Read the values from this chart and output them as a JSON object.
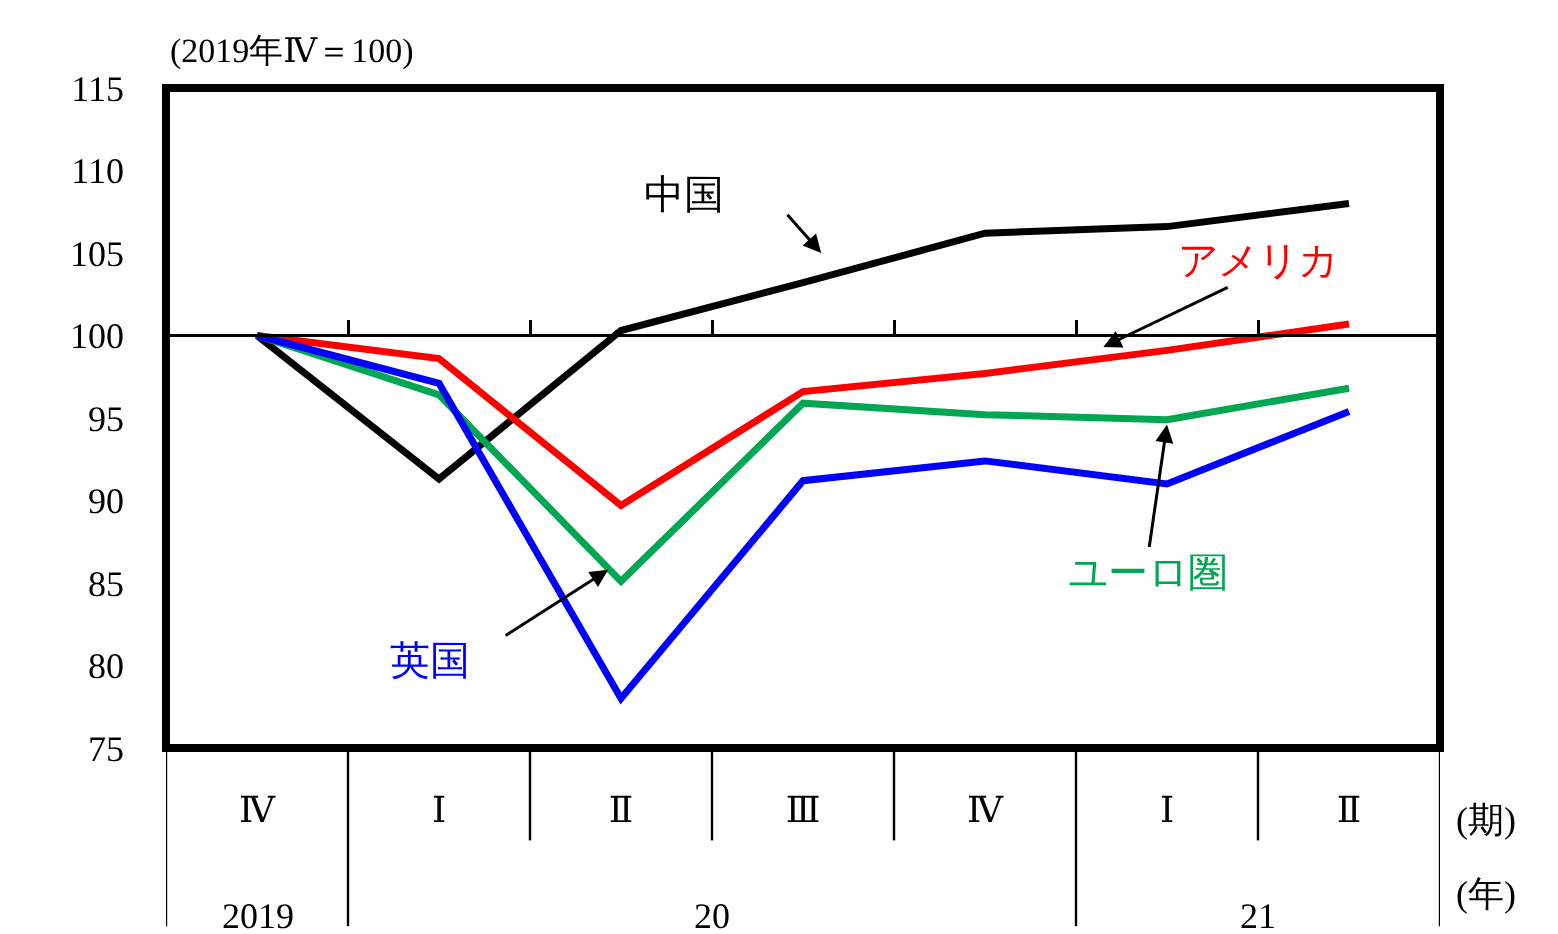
{
  "chart_data": {
    "type": "line",
    "ylabel": "(2019年Ⅳ＝100)",
    "categories": [
      "Ⅳ",
      "Ⅰ",
      "Ⅱ",
      "Ⅲ",
      "Ⅳ",
      "Ⅰ",
      "Ⅱ"
    ],
    "series": [
      {
        "name": "中国",
        "color": "#000000",
        "values": [
          100,
          91.3,
          100.3,
          103.2,
          106.2,
          106.6,
          108.0
        ]
      },
      {
        "name": "アメリカ",
        "color": "#ff0000",
        "values": [
          100,
          98.6,
          89.7,
          96.6,
          97.7,
          99.1,
          100.7
        ]
      },
      {
        "name": "ユーロ圏",
        "color": "#00a651",
        "values": [
          100,
          96.4,
          85.1,
          95.9,
          95.2,
          94.9,
          96.8
        ]
      },
      {
        "name": "英国",
        "color": "#0000ff",
        "values": [
          100,
          97.1,
          78.0,
          91.2,
          92.4,
          91.0,
          95.4
        ]
      }
    ],
    "ylim": [
      75,
      115
    ],
    "yticks": [
      75,
      80,
      85,
      90,
      95,
      100,
      105,
      110,
      115
    ],
    "ref_lines": [
      {
        "axis": "y",
        "value": 100,
        "color": "#000000"
      }
    ],
    "annotations": [
      "(期)",
      "(年)",
      "2019",
      "20",
      "21"
    ],
    "grid": false,
    "legend": false,
    "marker": "none",
    "line_style": "solid"
  }
}
